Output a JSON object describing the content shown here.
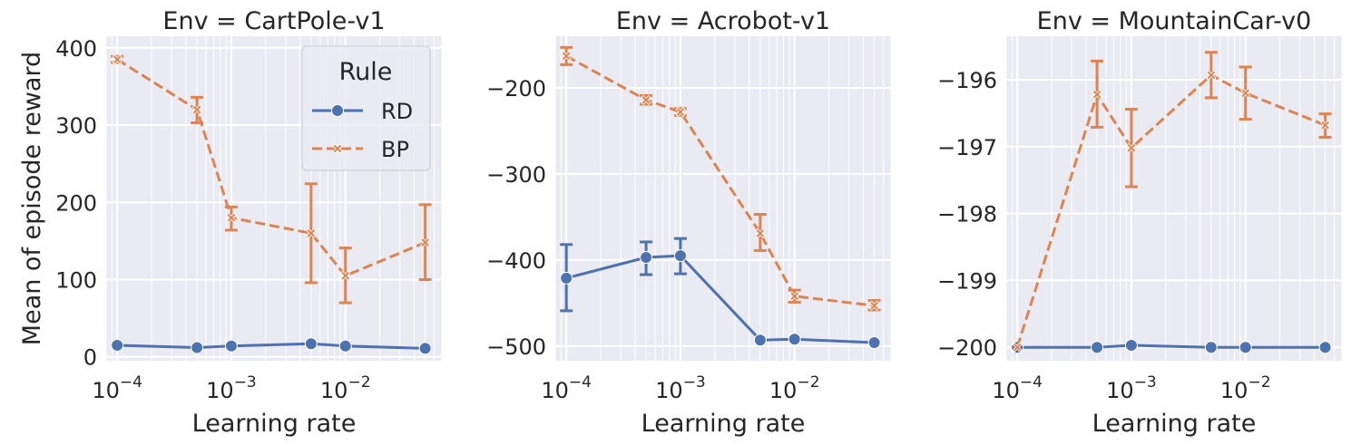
{
  "figure": {
    "ylabel": "Mean of episode reward",
    "xlabel": "Learning rate",
    "legend": {
      "title": "Rule",
      "placement": "top-right of first panel",
      "entries": [
        {
          "name": "RD",
          "color": "#4C72B0",
          "marker": "circle",
          "line": "solid"
        },
        {
          "name": "BP",
          "color": "#DD8452",
          "marker": "x",
          "line": "dashed"
        }
      ]
    },
    "style": {
      "background": "#EAEAF2",
      "grid": true,
      "grid_color": "#FFFFFF"
    }
  },
  "chart_data": [
    {
      "type": "line",
      "title": "Env = CartPole-v1",
      "xlabel": "Learning rate",
      "ylabel": "Mean of episode reward",
      "xscale": "log",
      "xlim": [
        8e-05,
        0.07
      ],
      "ylim": [
        -5,
        415
      ],
      "xticks": [
        0.0001,
        0.001,
        0.01
      ],
      "yticks": [
        0,
        100,
        200,
        300,
        400
      ],
      "x": [
        0.0001,
        0.0005,
        0.001,
        0.005,
        0.01,
        0.05
      ],
      "series": [
        {
          "name": "RD",
          "values": [
            15,
            12,
            14,
            17,
            14,
            11
          ],
          "err_low": [
            null,
            null,
            null,
            null,
            null,
            null
          ],
          "err_high": [
            null,
            null,
            null,
            null,
            null,
            null
          ]
        },
        {
          "name": "BP",
          "values": [
            385,
            320,
            180,
            160,
            105,
            148
          ],
          "err_low": [
            381,
            303,
            164,
            96,
            70,
            100
          ],
          "err_high": [
            389,
            336,
            194,
            224,
            141,
            197
          ]
        }
      ]
    },
    {
      "type": "line",
      "title": "Env = Acrobot-v1",
      "xlabel": "Learning rate",
      "xscale": "log",
      "xlim": [
        8e-05,
        0.07
      ],
      "ylim": [
        -517,
        -140
      ],
      "xticks": [
        0.0001,
        0.001,
        0.01
      ],
      "yticks": [
        -500,
        -400,
        -300,
        -200
      ],
      "x": [
        0.0001,
        0.0005,
        0.001,
        0.005,
        0.01,
        0.05
      ],
      "series": [
        {
          "name": "RD",
          "values": [
            -421,
            -397,
            -395,
            -493,
            -492,
            -496
          ],
          "err_low": [
            -459,
            -417,
            -416,
            null,
            null,
            null
          ],
          "err_high": [
            -382,
            -379,
            -375,
            null,
            null,
            null
          ]
        },
        {
          "name": "BP",
          "values": [
            -163,
            -214,
            -228,
            -369,
            -442,
            -453
          ],
          "err_low": [
            -173,
            -219,
            -232,
            -389,
            -449,
            -458
          ],
          "err_high": [
            -153,
            -209,
            -224,
            -347,
            -435,
            -447
          ]
        }
      ]
    },
    {
      "type": "line",
      "title": "Env = MountainCar-v0",
      "xlabel": "Learning rate",
      "xscale": "log",
      "xlim": [
        8e-05,
        0.07
      ],
      "ylim": [
        -200.2,
        -195.35
      ],
      "xticks": [
        0.0001,
        0.001,
        0.01
      ],
      "yticks": [
        -200,
        -199,
        -198,
        -197,
        -196
      ],
      "x": [
        0.0001,
        0.0005,
        0.001,
        0.005,
        0.01,
        0.05
      ],
      "series": [
        {
          "name": "RD",
          "values": [
            -200.0,
            -200.0,
            -199.97,
            -200.0,
            -200.0,
            -200.0
          ],
          "err_low": [
            null,
            null,
            null,
            null,
            null,
            null
          ],
          "err_high": [
            null,
            null,
            null,
            null,
            null,
            null
          ]
        },
        {
          "name": "BP",
          "values": [
            -200.0,
            -196.22,
            -197.02,
            -195.93,
            -196.2,
            -196.68
          ],
          "err_low": [
            null,
            -196.71,
            -197.6,
            -196.27,
            -196.59,
            -196.86
          ],
          "err_high": [
            null,
            -195.72,
            -196.44,
            -195.59,
            -195.81,
            -196.51
          ]
        }
      ]
    }
  ]
}
